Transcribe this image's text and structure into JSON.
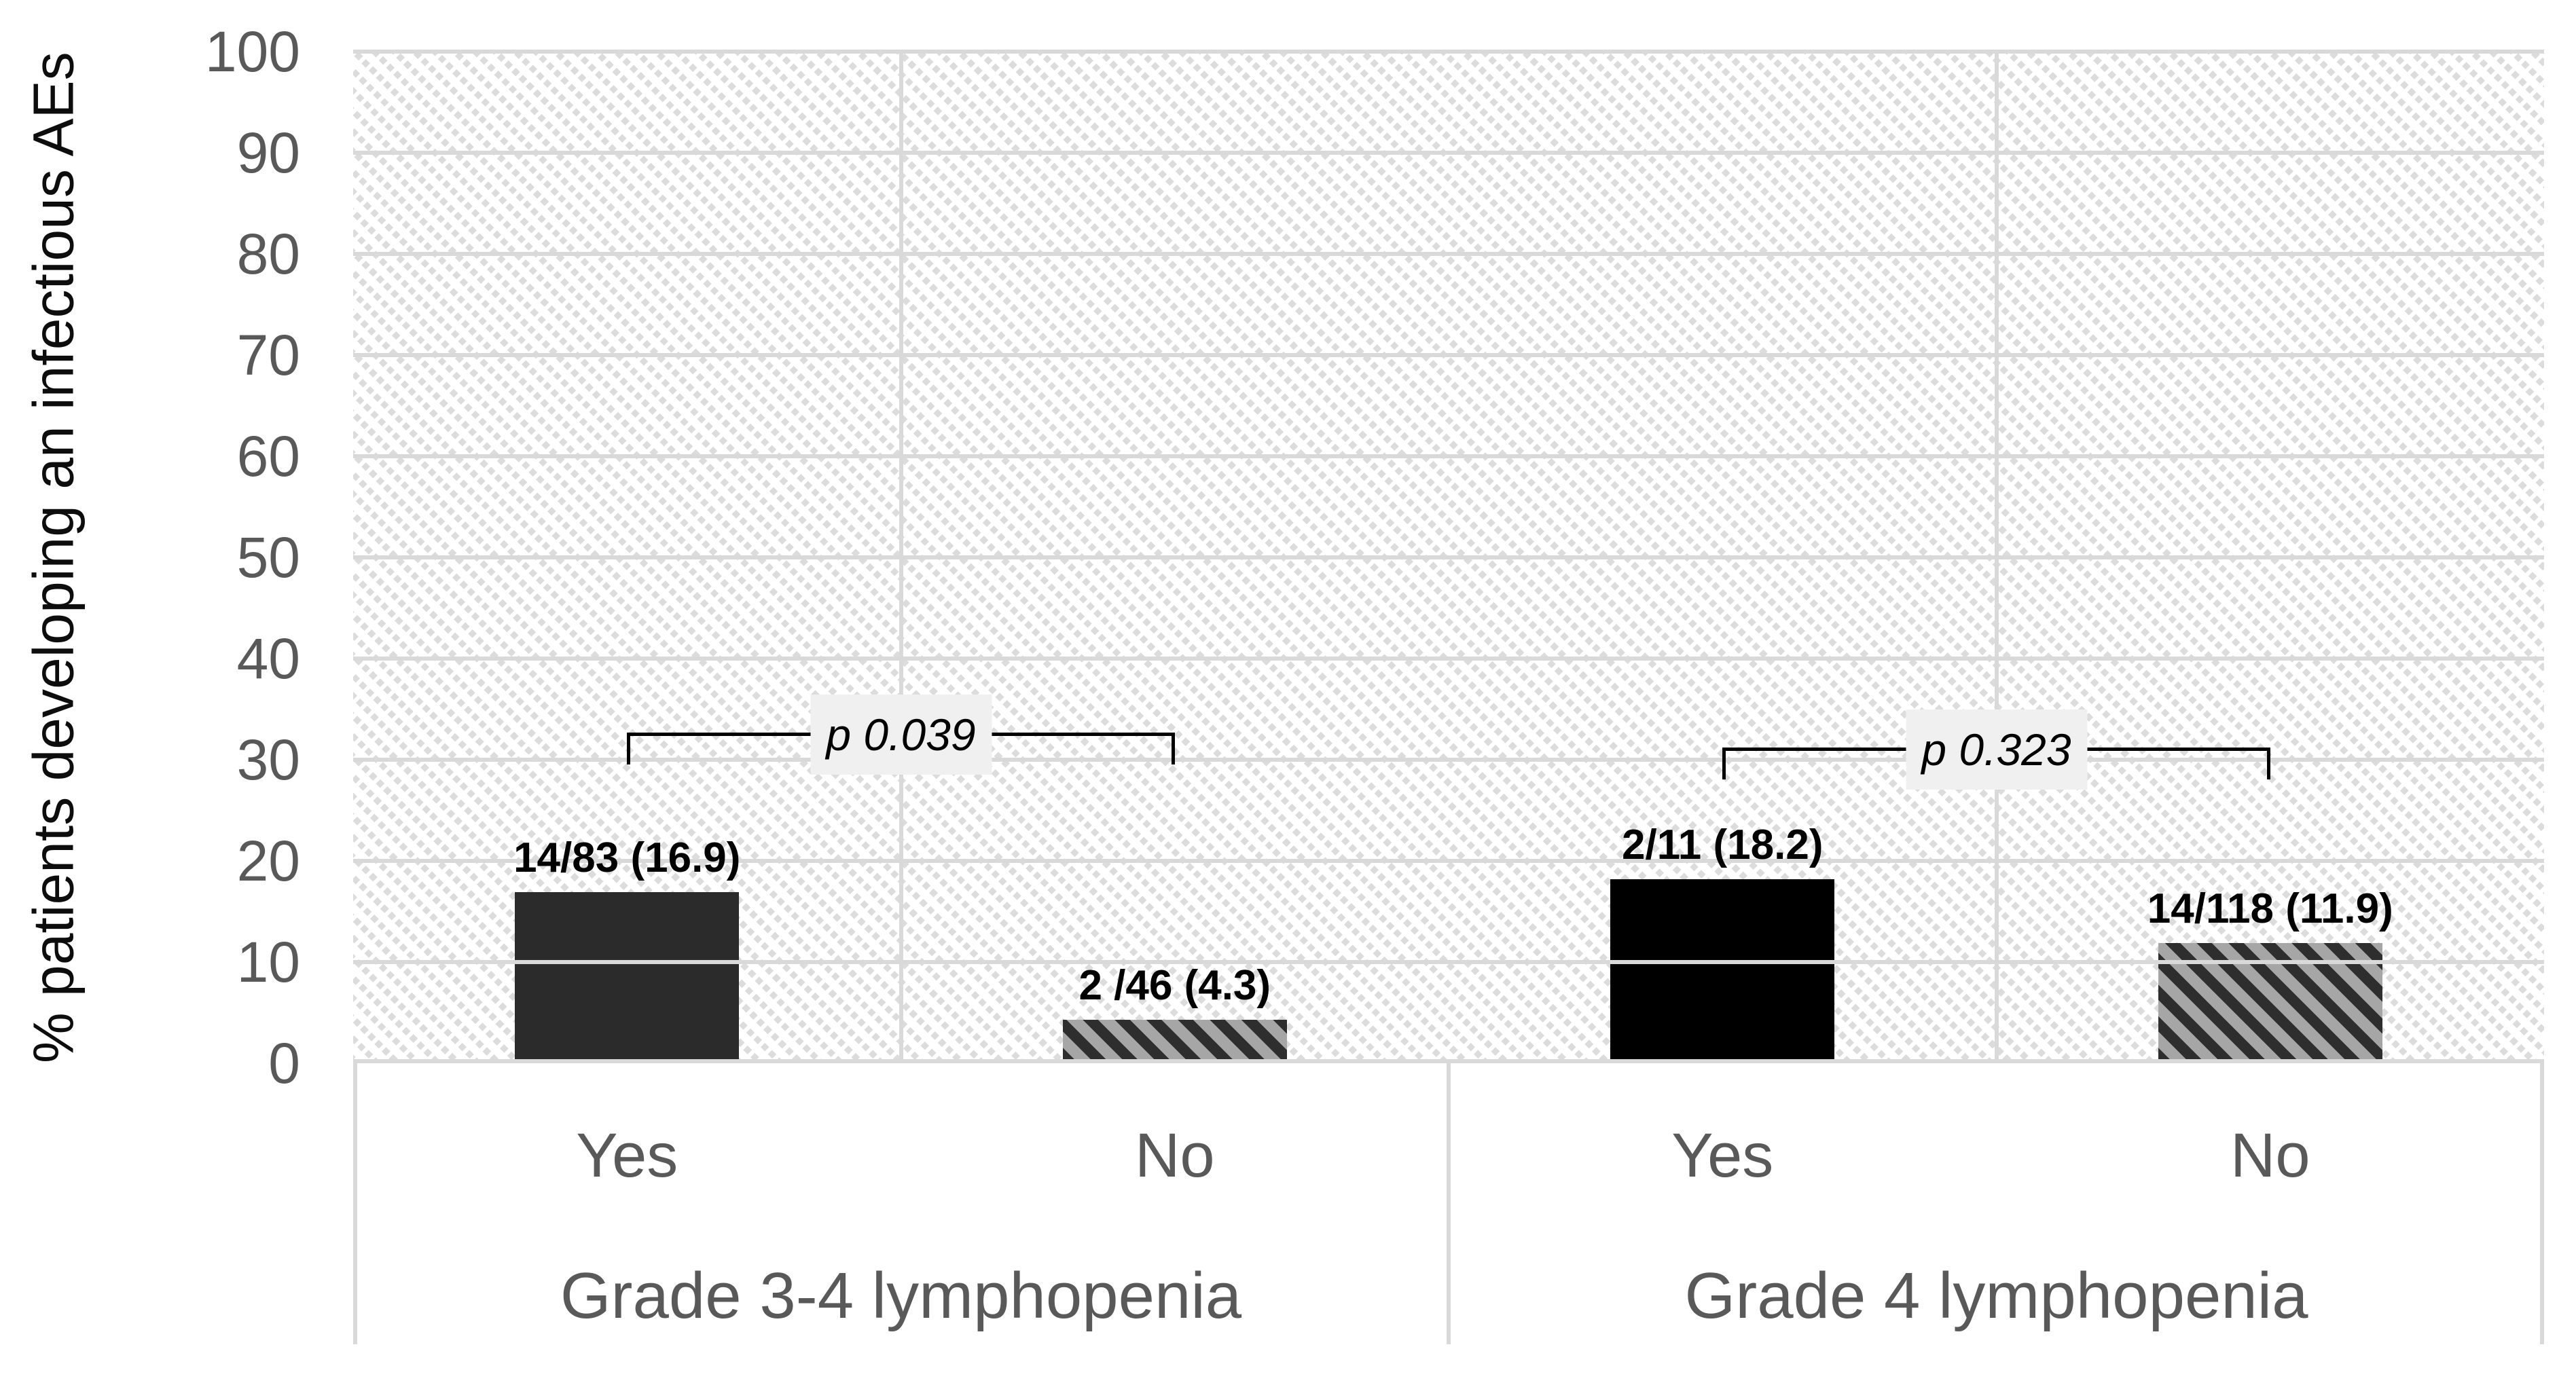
{
  "figure": {
    "background": "#ffffff"
  },
  "chart_data": {
    "type": "bar",
    "title": "",
    "xlabel": "",
    "ylabel": "% patients developing an infectious AEs",
    "ylim": [
      0,
      100
    ],
    "yticks": [
      0,
      10,
      20,
      30,
      40,
      50,
      60,
      70,
      80,
      90,
      100
    ],
    "grid": "horizontal-major",
    "legend": "none",
    "plot_background_pattern": "light-diagonal-dots",
    "groups": [
      {
        "label": "Grade 3-4 lymphopenia",
        "bars": [
          {
            "category": "Yes",
            "value": 16.9,
            "data_label": "14/83 (16.9)",
            "style": "solid",
            "color": "#2b2b2b"
          },
          {
            "category": "No",
            "value": 4.3,
            "data_label": "2 /46 (4.3)",
            "style": "hatched",
            "color": "#2e2e2e on #a6a6a6"
          }
        ],
        "significance": {
          "label": "p 0.039",
          "line_y_pct": 29.9
        }
      },
      {
        "label": "Grade 4 lymphopenia",
        "bars": [
          {
            "category": "Yes",
            "value": 18.2,
            "data_label": "2/11 (18.2)",
            "style": "solid",
            "color": "#000000"
          },
          {
            "category": "No",
            "value": 11.9,
            "data_label": "14/118 (11.9)",
            "style": "hatched",
            "color": "#2e2e2e on #a6a6a6"
          }
        ],
        "significance": {
          "label": "p 0.323",
          "line_y_pct": 28.4
        }
      }
    ],
    "colors": {
      "gridline": "#d9d9d9",
      "tick_text": "#595959",
      "axis_title_text": "#0d0d0d",
      "data_label_text": "#000000",
      "bracket_line": "#000000",
      "p_box_background": "#f0f0f0"
    }
  }
}
